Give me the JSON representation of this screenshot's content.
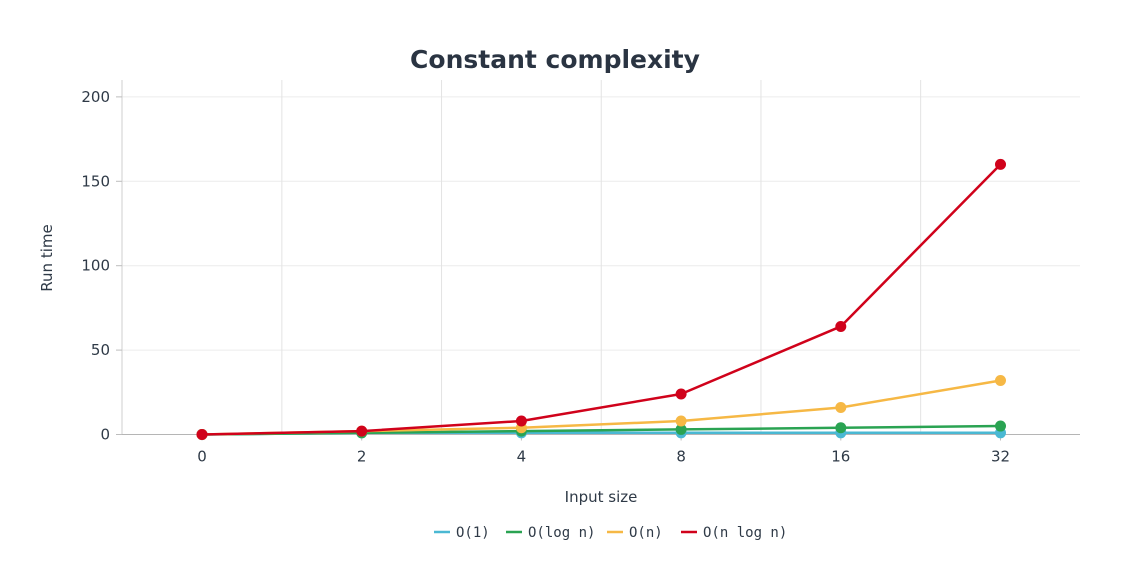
{
  "chart_data": {
    "type": "line",
    "title": "Constant complexity",
    "xlabel": "Input size",
    "ylabel": "Run time",
    "categories": [
      "0",
      "2",
      "4",
      "8",
      "16",
      "32"
    ],
    "ylim": [
      0,
      210
    ],
    "yticks": [
      0,
      50,
      100,
      150,
      200
    ],
    "grid": true,
    "legend_position": "bottom-center",
    "series": [
      {
        "name": "O(1)",
        "color": "#4ab8d3",
        "values": [
          0,
          1,
          1,
          1,
          1,
          1
        ]
      },
      {
        "name": "O(log n)",
        "color": "#2aa352",
        "values": [
          0,
          1,
          2,
          3,
          4,
          5
        ]
      },
      {
        "name": "O(n)",
        "color": "#f6b845",
        "values": [
          0,
          2,
          4,
          8,
          16,
          32
        ]
      },
      {
        "name": "O(n log n)",
        "color": "#d0021b",
        "values": [
          0,
          2,
          8,
          24,
          64,
          160
        ]
      }
    ]
  }
}
